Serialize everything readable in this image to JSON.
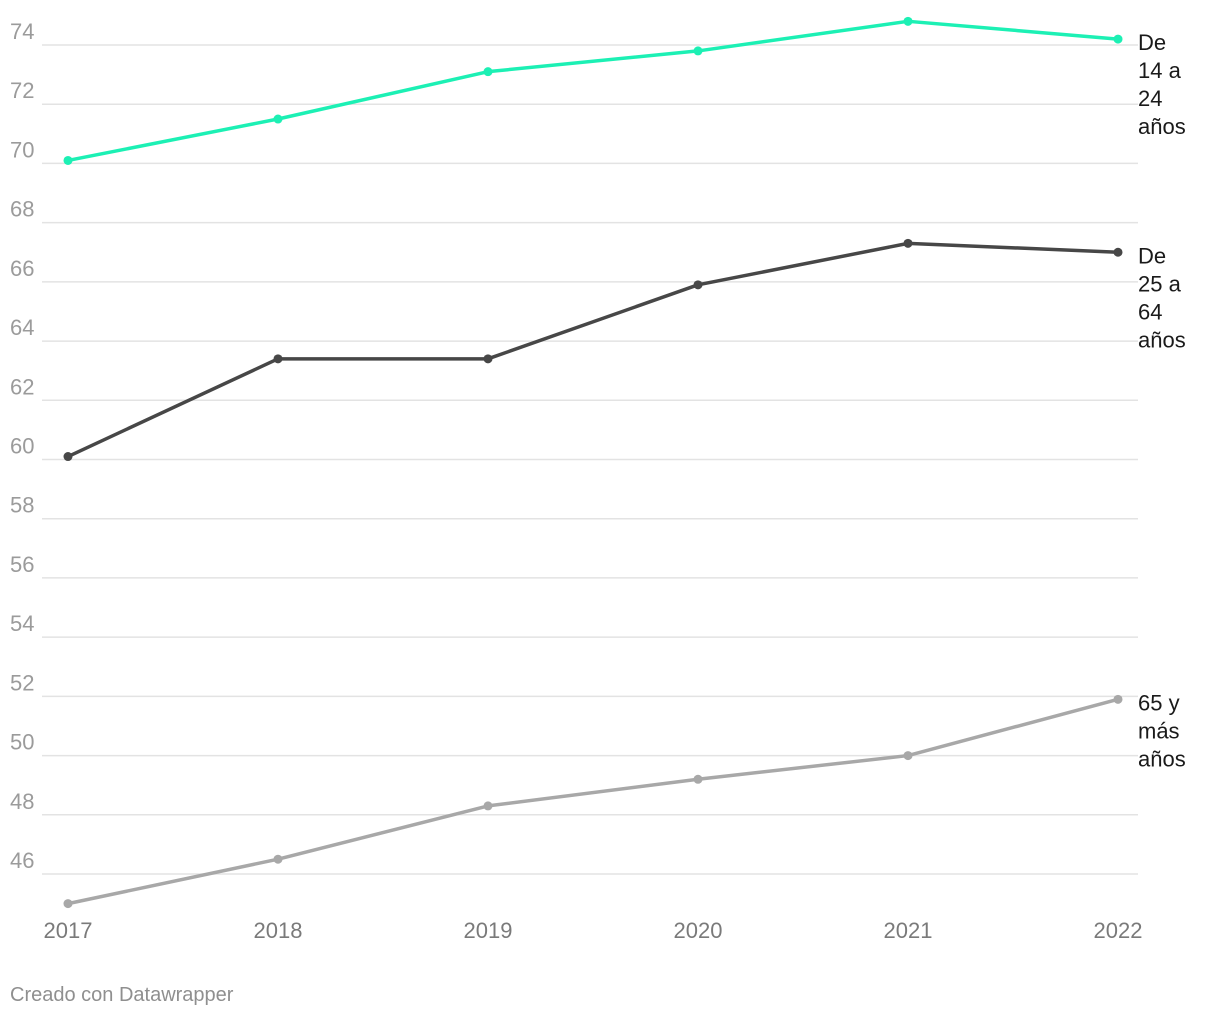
{
  "chart_data": {
    "type": "line",
    "x": [
      "2017",
      "2018",
      "2019",
      "2020",
      "2021",
      "2022"
    ],
    "ylim": [
      45,
      75
    ],
    "yticks": [
      46,
      48,
      50,
      52,
      54,
      56,
      58,
      60,
      62,
      64,
      66,
      68,
      70,
      72,
      74
    ],
    "grid": true,
    "legend": "inline-right",
    "series": [
      {
        "name": "De 14 a 24 años",
        "label_lines": [
          "De",
          "14 a",
          "24",
          "años"
        ],
        "color": "#1cf0b4",
        "values": [
          70.1,
          71.5,
          73.1,
          73.8,
          74.8,
          74.2
        ]
      },
      {
        "name": "De 25 a 64 años",
        "label_lines": [
          "De",
          "25 a",
          "64",
          "años"
        ],
        "color": "#474747",
        "values": [
          60.1,
          63.4,
          63.4,
          65.9,
          67.3,
          67.0
        ]
      },
      {
        "name": "65 y más años",
        "label_lines": [
          "65 y",
          "más",
          "años"
        ],
        "color": "#a8a8a8",
        "values": [
          45.0,
          46.5,
          48.3,
          49.2,
          50.0,
          51.9
        ]
      }
    ]
  },
  "footer": {
    "credit": "Creado con Datawrapper"
  }
}
